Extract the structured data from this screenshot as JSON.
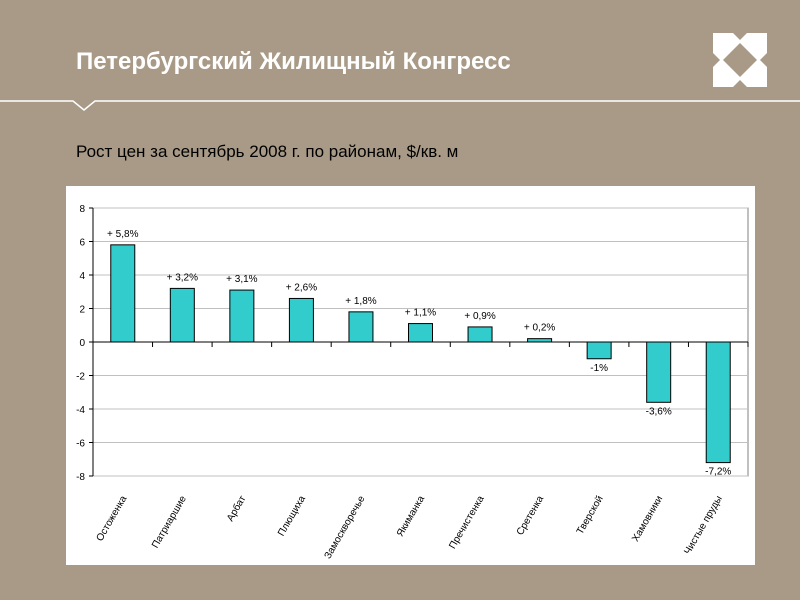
{
  "header": {
    "title": "Петербургский Жилищный Конгресс"
  },
  "subtitle": "Рост цен за сентябрь 2008 г. по районам, $/кв. м",
  "colors": {
    "background": "#a89a86",
    "bar": "#33cccc",
    "grid": "#c0c0c0"
  },
  "chart_data": {
    "type": "bar",
    "title": "Рост цен за сентябрь 2008 г. по районам, $/кв. м",
    "xlabel": "",
    "ylabel": "",
    "ylim": [
      -8,
      8
    ],
    "yticks": [
      -8,
      -6,
      -4,
      -2,
      0,
      2,
      4,
      6,
      8
    ],
    "grid": true,
    "categories": [
      "Остоженка",
      "Патриаршие",
      "Арбат",
      "Плющиха",
      "Замоскворечье",
      "Якиманка",
      "Пречистенка",
      "Сретенка",
      "Тверской",
      "Хамовники",
      "Чистые пруды"
    ],
    "values": [
      5.8,
      3.2,
      3.1,
      2.6,
      1.8,
      1.1,
      0.9,
      0.2,
      -1,
      -3.6,
      -7.2
    ],
    "data_labels": [
      "+ 5,8%",
      "+ 3,2%",
      "+ 3,1%",
      "+ 2,6%",
      "+ 1,8%",
      "+ 1,1%",
      "+ 0,9%",
      "+ 0,2%",
      "-1%",
      "-3,6%",
      "-7,2%"
    ]
  }
}
